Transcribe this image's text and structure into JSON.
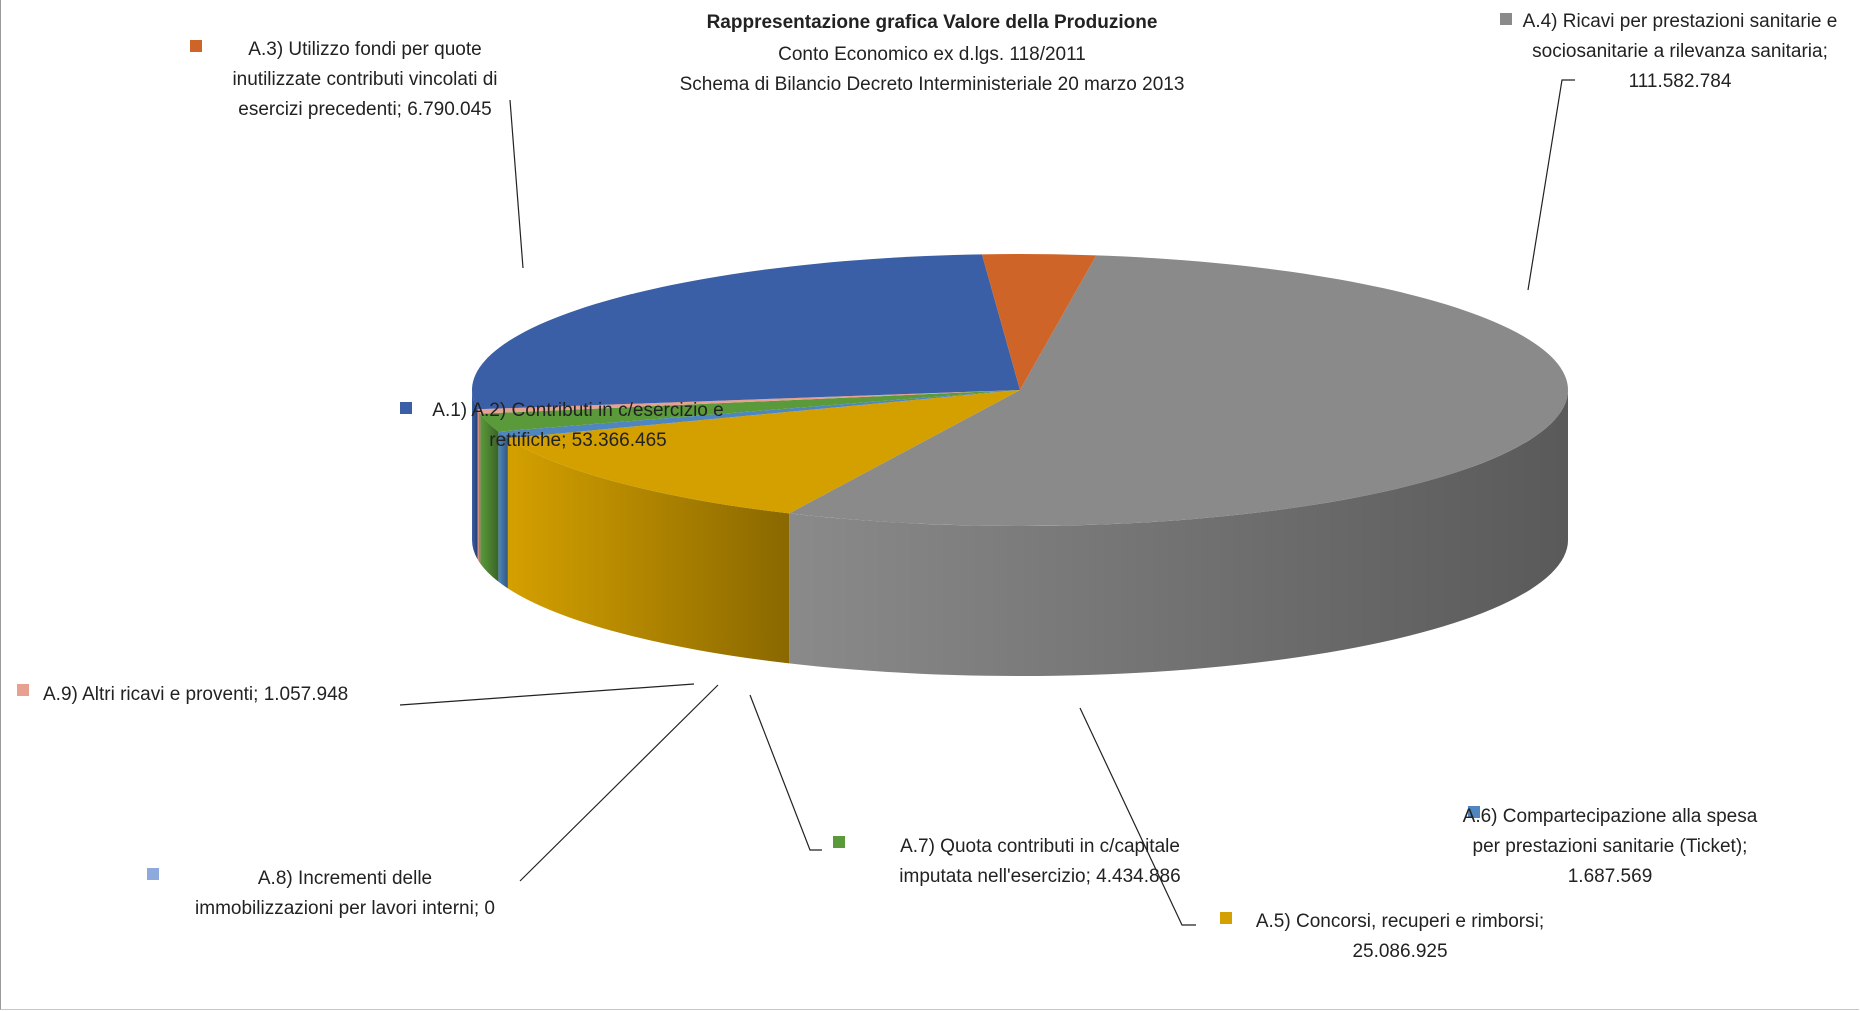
{
  "chart_data": {
    "type": "pie",
    "title": "Rappresentazione grafica Valore della Produzione",
    "subtitle_lines": [
      "Conto Economico ex d.lgs. 118/2011",
      "Schema di Bilancio Decreto Interministeriale 20 marzo 2013"
    ],
    "slices": [
      {
        "key": "a4",
        "value": 111582784,
        "color": "#8a8a8a",
        "dark": "#3f3f3f",
        "label_lines": [
          "A.4) Ricavi per prestazioni sanitarie e",
          "sociosanitarie a rilevanza sanitaria;",
          "111.582.784"
        ]
      },
      {
        "key": "a5",
        "value": 25086925,
        "color": "#d4a000",
        "dark": "#8a6500",
        "label_lines": [
          "A.5) Concorsi, recuperi e rimborsi;",
          "25.086.925"
        ]
      },
      {
        "key": "a6",
        "value": 1687569,
        "color": "#4f86bf",
        "dark": "#355f8c",
        "label_lines": [
          "A.6) Compartecipazione alla spesa",
          "per prestazioni sanitarie (Ticket);",
          "1.687.569"
        ]
      },
      {
        "key": "a7",
        "value": 4434886,
        "color": "#5a9a3a",
        "dark": "#4a7f30",
        "label_lines": [
          "A.7) Quota contributi in c/capitale",
          "imputata nell'esercizio; 4.434.886"
        ]
      },
      {
        "key": "a8",
        "value": 0,
        "color": "#8ea9db",
        "dark": "#6f88b8",
        "label_lines": [
          "A.8) Incrementi delle",
          "immobilizzazioni per lavori interni; 0"
        ]
      },
      {
        "key": "a9",
        "value": 1057948,
        "color": "#e8a090",
        "dark": "#c98878",
        "label_lines": [
          "A.9) Altri ricavi e proventi; 1.057.948"
        ]
      },
      {
        "key": "a12",
        "value": 53366465,
        "color": "#3a5fa6",
        "dark": "#2f4f8c",
        "label_lines": [
          "A.1) A.2) Contributi in c/esercizio e",
          "rettifiche; 53.366.465"
        ]
      },
      {
        "key": "a3",
        "value": 6790045,
        "color": "#cf6428",
        "dark": "#9d4a1c",
        "label_lines": [
          "A.3) Utilizzo fondi per quote",
          "inutilizzate contributi vincolati di",
          "esercizi precedenti; 6.790.045"
        ]
      }
    ],
    "legend": "none"
  }
}
